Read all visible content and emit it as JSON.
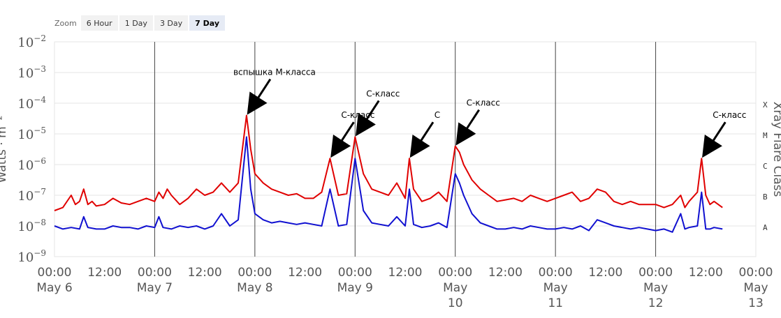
{
  "zoom": {
    "label": "Zoom",
    "buttons": [
      "6 Hour",
      "1 Day",
      "3 Day",
      "7 Day"
    ],
    "selected": "7 Day"
  },
  "chart_data": {
    "type": "line",
    "y_scale": "log",
    "ylim": [
      1e-09,
      0.01
    ],
    "ylabel": "Watts · m⁻²",
    "y2label": "Xray Flare Class",
    "y_tick_exponents": [
      -2,
      -3,
      -4,
      -5,
      -6,
      -7,
      -8,
      -9
    ],
    "flare_classes": [
      "X",
      "M",
      "C",
      "B",
      "A"
    ],
    "x_range_hours": [
      0,
      168
    ],
    "x_ticks": [
      {
        "line1": "00:00",
        "line2": "May 6"
      },
      {
        "line1": "12:00",
        "line2": ""
      },
      {
        "line1": "00:00",
        "line2": "May 7"
      },
      {
        "line1": "12:00",
        "line2": ""
      },
      {
        "line1": "00:00",
        "line2": "May 8"
      },
      {
        "line1": "12:00",
        "line2": ""
      },
      {
        "line1": "00:00",
        "line2": "May 9"
      },
      {
        "line1": "12:00",
        "line2": ""
      },
      {
        "line1": "00:00",
        "line2": "May 10"
      },
      {
        "line1": "12:00",
        "line2": ""
      },
      {
        "line1": "00:00",
        "line2": "May 11"
      },
      {
        "line1": "12:00",
        "line2": ""
      },
      {
        "line1": "00:00",
        "line2": "May 12"
      },
      {
        "line1": "12:00",
        "line2": ""
      },
      {
        "line1": "00:00",
        "line2": "May 13"
      }
    ],
    "series": [
      {
        "color": "#e00000",
        "baseline_log": -7.4,
        "points": [
          [
            0,
            -7.5
          ],
          [
            2,
            -7.4
          ],
          [
            4,
            -7.0
          ],
          [
            5,
            -7.3
          ],
          [
            6,
            -7.2
          ],
          [
            7,
            -6.8
          ],
          [
            8,
            -7.3
          ],
          [
            9,
            -7.2
          ],
          [
            10,
            -7.35
          ],
          [
            12,
            -7.3
          ],
          [
            14,
            -7.1
          ],
          [
            16,
            -7.25
          ],
          [
            18,
            -7.3
          ],
          [
            20,
            -7.2
          ],
          [
            22,
            -7.1
          ],
          [
            24,
            -7.2
          ],
          [
            25,
            -6.9
          ],
          [
            26,
            -7.1
          ],
          [
            27,
            -6.8
          ],
          [
            28,
            -7.0
          ],
          [
            30,
            -7.3
          ],
          [
            32,
            -7.1
          ],
          [
            34,
            -6.8
          ],
          [
            36,
            -7.0
          ],
          [
            38,
            -6.9
          ],
          [
            40,
            -6.6
          ],
          [
            42,
            -6.9
          ],
          [
            44,
            -6.6
          ],
          [
            46,
            -4.4
          ],
          [
            47,
            -5.5
          ],
          [
            48,
            -6.3
          ],
          [
            50,
            -6.6
          ],
          [
            52,
            -6.8
          ],
          [
            54,
            -6.9
          ],
          [
            56,
            -7.0
          ],
          [
            58,
            -6.95
          ],
          [
            60,
            -7.1
          ],
          [
            62,
            -7.1
          ],
          [
            64,
            -6.9
          ],
          [
            66,
            -5.8
          ],
          [
            68,
            -7.0
          ],
          [
            70,
            -6.95
          ],
          [
            72,
            -5.1
          ],
          [
            74,
            -6.3
          ],
          [
            76,
            -6.8
          ],
          [
            78,
            -6.9
          ],
          [
            80,
            -7.0
          ],
          [
            82,
            -6.6
          ],
          [
            84,
            -7.1
          ],
          [
            85,
            -5.8
          ],
          [
            86,
            -6.8
          ],
          [
            88,
            -7.2
          ],
          [
            90,
            -7.1
          ],
          [
            92,
            -6.9
          ],
          [
            94,
            -7.2
          ],
          [
            96,
            -5.4
          ],
          [
            97,
            -5.6
          ],
          [
            98,
            -6.0
          ],
          [
            100,
            -6.5
          ],
          [
            102,
            -6.8
          ],
          [
            104,
            -7.0
          ],
          [
            106,
            -7.2
          ],
          [
            108,
            -7.15
          ],
          [
            110,
            -7.1
          ],
          [
            112,
            -7.2
          ],
          [
            114,
            -7.0
          ],
          [
            116,
            -7.1
          ],
          [
            118,
            -7.2
          ],
          [
            120,
            -7.1
          ],
          [
            122,
            -7.0
          ],
          [
            124,
            -6.9
          ],
          [
            126,
            -7.2
          ],
          [
            128,
            -7.1
          ],
          [
            130,
            -6.8
          ],
          [
            132,
            -6.9
          ],
          [
            134,
            -7.2
          ],
          [
            136,
            -7.3
          ],
          [
            138,
            -7.2
          ],
          [
            140,
            -7.3
          ],
          [
            142,
            -7.3
          ],
          [
            144,
            -7.3
          ],
          [
            146,
            -7.4
          ],
          [
            148,
            -7.3
          ],
          [
            150,
            -7.0
          ],
          [
            151,
            -7.4
          ],
          [
            152,
            -7.2
          ],
          [
            154,
            -6.9
          ],
          [
            155,
            -5.8
          ],
          [
            156,
            -7.0
          ],
          [
            157,
            -7.3
          ],
          [
            158,
            -7.2
          ],
          [
            160,
            -7.4
          ]
        ]
      },
      {
        "color": "#1010d0",
        "baseline_log": -8.1,
        "points": [
          [
            0,
            -8.0
          ],
          [
            2,
            -8.1
          ],
          [
            4,
            -8.05
          ],
          [
            6,
            -8.1
          ],
          [
            7,
            -7.7
          ],
          [
            8,
            -8.05
          ],
          [
            10,
            -8.1
          ],
          [
            12,
            -8.1
          ],
          [
            14,
            -8.0
          ],
          [
            16,
            -8.05
          ],
          [
            18,
            -8.05
          ],
          [
            20,
            -8.1
          ],
          [
            22,
            -8.0
          ],
          [
            24,
            -8.05
          ],
          [
            25,
            -7.7
          ],
          [
            26,
            -8.05
          ],
          [
            28,
            -8.1
          ],
          [
            30,
            -8.0
          ],
          [
            32,
            -8.05
          ],
          [
            34,
            -8.0
          ],
          [
            36,
            -8.1
          ],
          [
            38,
            -8.0
          ],
          [
            40,
            -7.6
          ],
          [
            42,
            -8.0
          ],
          [
            44,
            -7.8
          ],
          [
            46,
            -5.1
          ],
          [
            47,
            -6.8
          ],
          [
            48,
            -7.6
          ],
          [
            50,
            -7.8
          ],
          [
            52,
            -7.9
          ],
          [
            54,
            -7.85
          ],
          [
            56,
            -7.9
          ],
          [
            58,
            -7.95
          ],
          [
            60,
            -7.9
          ],
          [
            62,
            -7.95
          ],
          [
            64,
            -8.0
          ],
          [
            66,
            -6.8
          ],
          [
            68,
            -8.0
          ],
          [
            70,
            -7.95
          ],
          [
            72,
            -5.8
          ],
          [
            74,
            -7.5
          ],
          [
            76,
            -7.9
          ],
          [
            78,
            -7.95
          ],
          [
            80,
            -8.0
          ],
          [
            82,
            -7.7
          ],
          [
            84,
            -8.0
          ],
          [
            85,
            -6.8
          ],
          [
            86,
            -7.95
          ],
          [
            88,
            -8.05
          ],
          [
            90,
            -8.0
          ],
          [
            92,
            -7.9
          ],
          [
            94,
            -8.05
          ],
          [
            96,
            -6.3
          ],
          [
            97,
            -6.6
          ],
          [
            98,
            -7.0
          ],
          [
            100,
            -7.6
          ],
          [
            102,
            -7.9
          ],
          [
            104,
            -8.0
          ],
          [
            106,
            -8.1
          ],
          [
            108,
            -8.1
          ],
          [
            110,
            -8.05
          ],
          [
            112,
            -8.1
          ],
          [
            114,
            -8.0
          ],
          [
            116,
            -8.05
          ],
          [
            118,
            -8.1
          ],
          [
            120,
            -8.1
          ],
          [
            122,
            -8.05
          ],
          [
            124,
            -8.1
          ],
          [
            126,
            -8.0
          ],
          [
            128,
            -8.15
          ],
          [
            130,
            -7.8
          ],
          [
            132,
            -7.9
          ],
          [
            134,
            -8.0
          ],
          [
            136,
            -8.05
          ],
          [
            138,
            -8.1
          ],
          [
            140,
            -8.05
          ],
          [
            142,
            -8.1
          ],
          [
            144,
            -8.15
          ],
          [
            146,
            -8.1
          ],
          [
            148,
            -8.2
          ],
          [
            150,
            -7.6
          ],
          [
            151,
            -8.1
          ],
          [
            152,
            -8.05
          ],
          [
            154,
            -8.0
          ],
          [
            155,
            -6.9
          ],
          [
            156,
            -8.1
          ],
          [
            157,
            -8.1
          ],
          [
            158,
            -8.05
          ],
          [
            160,
            -8.1
          ]
        ]
      }
    ],
    "annotations": [
      {
        "text": "вспышка М-класса",
        "x_hours": 46,
        "y_log": -4.4
      },
      {
        "text": "С-класс",
        "x_hours": 66,
        "y_log": -5.8
      },
      {
        "text": "С-класс",
        "x_hours": 72,
        "y_log": -5.1
      },
      {
        "text": "С",
        "x_hours": 85,
        "y_log": -5.8
      },
      {
        "text": "С-класс",
        "x_hours": 96,
        "y_log": -5.4
      },
      {
        "text": "С-класс",
        "x_hours": 155,
        "y_log": -5.8
      }
    ]
  }
}
